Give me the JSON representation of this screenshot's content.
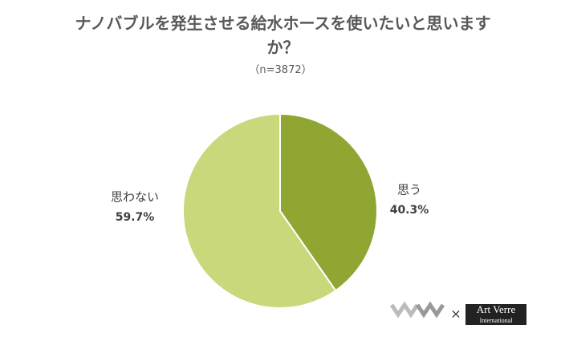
{
  "chart_data": {
    "type": "pie",
    "title": "ナノバブルを発生させる給水ホースを使いたいと思いますか？",
    "subtitle": "（n=3872）",
    "categories": [
      "思う",
      "思わない"
    ],
    "values": [
      40.3,
      59.7
    ],
    "value_labels": [
      "40.3%",
      "59.7%"
    ],
    "colors": [
      "#8fa632",
      "#c8d87b"
    ],
    "logo": {
      "separator": "×",
      "name": "Art Verre",
      "sub": "International"
    }
  }
}
